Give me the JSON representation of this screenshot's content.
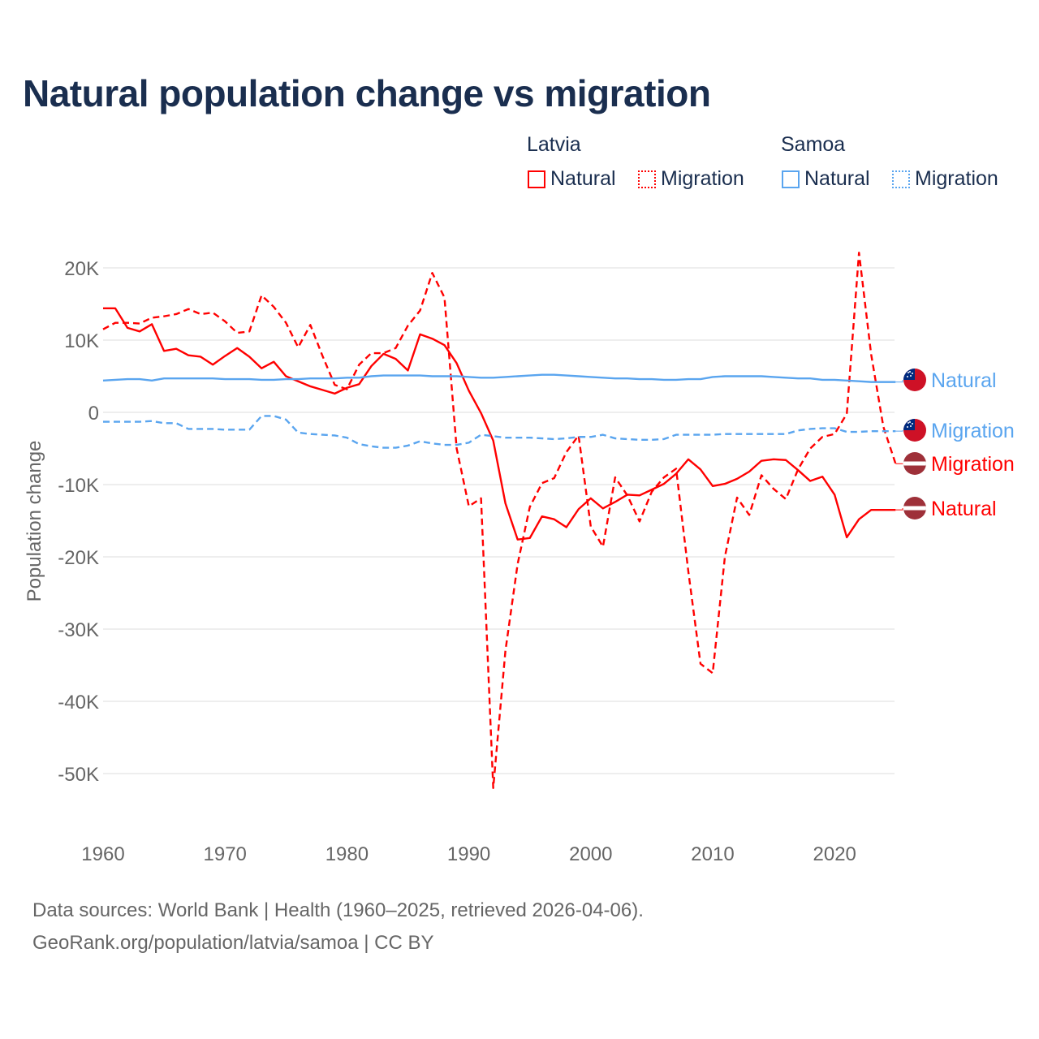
{
  "chart_data": {
    "type": "line",
    "title": "Natural population change vs migration",
    "xlabel": "",
    "ylabel": "Population change",
    "xlim": [
      1960,
      2025
    ],
    "ylim": [
      -55000,
      25000
    ],
    "x_ticks": [
      1960,
      1970,
      1980,
      1990,
      2000,
      2010,
      2020
    ],
    "x_tick_labels": [
      "1960",
      "1970",
      "1980",
      "1990",
      "2000",
      "2010",
      "2020"
    ],
    "y_ticks": [
      20000,
      10000,
      0,
      -10000,
      -20000,
      -30000,
      -40000,
      -50000
    ],
    "y_tick_labels": [
      "20K",
      "10K",
      "0",
      "-10K",
      "-20K",
      "-30K",
      "-40K",
      "-50K"
    ],
    "grid": true,
    "legend": {
      "placement": "top-right",
      "groups": [
        {
          "name": "Latvia",
          "items": [
            "Natural",
            "Migration"
          ]
        },
        {
          "name": "Samoa",
          "items": [
            "Natural",
            "Migration"
          ]
        }
      ]
    },
    "x_start": 1960,
    "series": [
      {
        "name": "Latvia Natural",
        "country": "Latvia",
        "kind": "Natural",
        "color": "#ff0000",
        "dashed": false,
        "end_label": "Natural",
        "values": [
          14.4,
          14.4,
          11.7,
          11.2,
          12.2,
          8.5,
          8.8,
          7.9,
          7.7,
          6.6,
          7.8,
          8.9,
          7.7,
          6.1,
          7.0,
          5.0,
          4.3,
          3.6,
          3.1,
          2.6,
          3.4,
          3.9,
          6.4,
          8.1,
          7.4,
          5.8,
          10.8,
          10.2,
          9.3,
          6.8,
          3.0,
          -0.1,
          -3.9,
          -12.6,
          -17.6,
          -17.4,
          -14.4,
          -14.8,
          -15.9,
          -13.4,
          -11.9,
          -13.3,
          -12.4,
          -11.4,
          -11.5,
          -10.7,
          -9.9,
          -8.5,
          -6.5,
          -7.9,
          -10.2,
          -9.9,
          -9.2,
          -8.2,
          -6.7,
          -6.5,
          -6.6,
          -8.0,
          -9.5,
          -8.9,
          -11.4,
          -17.3,
          -14.8,
          -13.5,
          -13.5,
          -13.5
        ]
      },
      {
        "name": "Latvia Migration",
        "country": "Latvia",
        "kind": "Migration",
        "color": "#ff0000",
        "dashed": true,
        "end_label": "Migration",
        "values": [
          11.5,
          12.4,
          12.4,
          12.3,
          13.1,
          13.3,
          13.6,
          14.3,
          13.6,
          13.8,
          12.6,
          11.0,
          11.2,
          16.2,
          14.6,
          12.4,
          9.0,
          12.1,
          7.8,
          3.8,
          3.2,
          6.6,
          8.2,
          8.2,
          8.9,
          12.0,
          14.1,
          19.3,
          15.9,
          -5.0,
          -13.0,
          -11.9,
          -52.0,
          -33.0,
          -21.0,
          -13.1,
          -9.8,
          -9.1,
          -5.5,
          -3.2,
          -15.8,
          -18.6,
          -9.0,
          -11.5,
          -15.1,
          -11.0,
          -9.0,
          -7.8,
          -22.0,
          -34.8,
          -36.1,
          -20.0,
          -11.8,
          -14.2,
          -8.7,
          -10.6,
          -12.0,
          -7.9,
          -5.0,
          -3.4,
          -3.0,
          -0.2,
          22.1,
          8.0,
          -2.0,
          -7.1
        ]
      },
      {
        "name": "Samoa Natural",
        "country": "Samoa",
        "kind": "Natural",
        "color": "#5aa5ef",
        "dashed": false,
        "end_label": "Natural",
        "values": [
          4.4,
          4.5,
          4.6,
          4.6,
          4.4,
          4.7,
          4.7,
          4.7,
          4.7,
          4.7,
          4.6,
          4.6,
          4.6,
          4.5,
          4.5,
          4.6,
          4.6,
          4.7,
          4.7,
          4.7,
          4.8,
          4.8,
          5.0,
          5.1,
          5.1,
          5.1,
          5.1,
          5.0,
          5.0,
          5.0,
          4.9,
          4.8,
          4.8,
          4.9,
          5.0,
          5.1,
          5.2,
          5.2,
          5.1,
          5.0,
          4.9,
          4.8,
          4.7,
          4.7,
          4.6,
          4.6,
          4.5,
          4.5,
          4.6,
          4.6,
          4.9,
          5.0,
          5.0,
          5.0,
          5.0,
          4.9,
          4.8,
          4.7,
          4.7,
          4.5,
          4.5,
          4.4,
          4.3,
          4.2,
          4.2,
          4.2
        ]
      },
      {
        "name": "Samoa Migration",
        "country": "Samoa",
        "kind": "Migration",
        "color": "#5aa5ef",
        "dashed": true,
        "end_label": "Migration",
        "values": [
          -1.3,
          -1.3,
          -1.3,
          -1.3,
          -1.2,
          -1.5,
          -1.5,
          -2.3,
          -2.3,
          -2.3,
          -2.4,
          -2.4,
          -2.4,
          -0.5,
          -0.5,
          -1.0,
          -2.8,
          -3.0,
          -3.1,
          -3.2,
          -3.5,
          -4.4,
          -4.7,
          -4.9,
          -4.9,
          -4.6,
          -4.0,
          -4.3,
          -4.5,
          -4.5,
          -4.2,
          -3.1,
          -3.3,
          -3.5,
          -3.5,
          -3.5,
          -3.6,
          -3.7,
          -3.6,
          -3.4,
          -3.4,
          -3.1,
          -3.6,
          -3.7,
          -3.8,
          -3.8,
          -3.7,
          -3.1,
          -3.1,
          -3.1,
          -3.1,
          -3.0,
          -3.0,
          -3.0,
          -3.0,
          -3.0,
          -3.0,
          -2.5,
          -2.3,
          -2.2,
          -2.2,
          -2.7,
          -2.7,
          -2.6,
          -2.6,
          -2.6
        ]
      }
    ]
  },
  "footer": {
    "line1": "Data sources: World Bank | Health (1960–2025, retrieved 2026-04-06).",
    "line2": "GeoRank.org/population/latvia/samoa | CC BY"
  }
}
